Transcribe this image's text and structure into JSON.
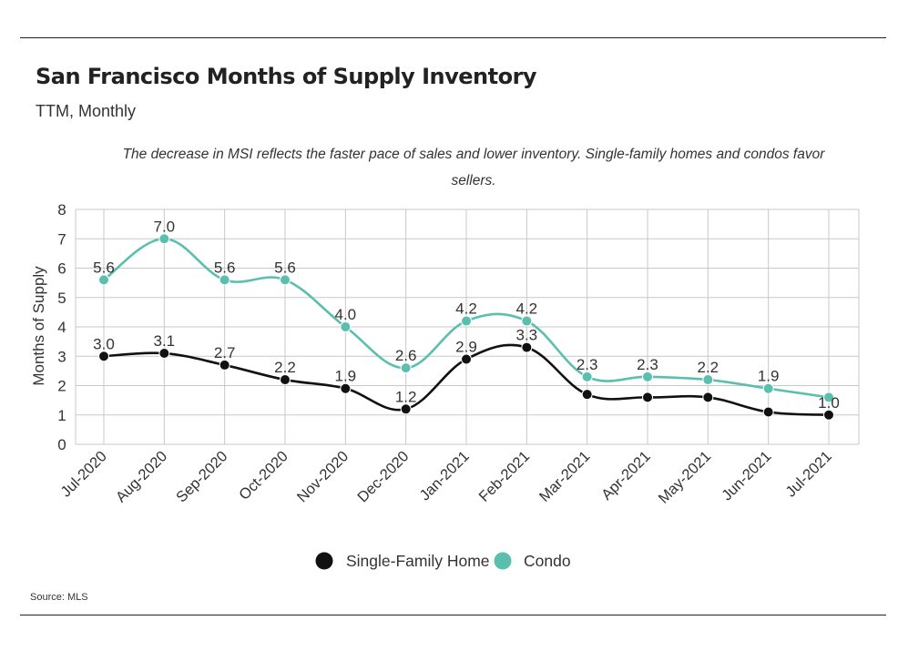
{
  "header": {
    "title": "San Francisco Months of Supply Inventory",
    "subtitle": "TTM, Monthly",
    "annotation": "The decrease in MSI reflects the faster pace of sales and lower inventory. Single-family homes and condos favor sellers."
  },
  "footer": {
    "source": "Source:  MLS"
  },
  "chart_data": {
    "type": "line",
    "title": "San Francisco Months of Supply Inventory",
    "subtitle": "TTM, Monthly",
    "ylabel": "Months of Supply",
    "xlabel": "",
    "ylim": [
      0,
      8
    ],
    "yticks": [
      0,
      1,
      2,
      3,
      4,
      5,
      6,
      7,
      8
    ],
    "grid": true,
    "legend_position": "bottom-center",
    "categories": [
      "Jul-2020",
      "Aug-2020",
      "Sep-2020",
      "Oct-2020",
      "Nov-2020",
      "Dec-2020",
      "Jan-2021",
      "Feb-2021",
      "Mar-2021",
      "Apr-2021",
      "May-2021",
      "Jun-2021",
      "Jul-2021"
    ],
    "series": [
      {
        "name": "Single-Family Home",
        "color": "#111111",
        "values": [
          3.0,
          3.1,
          2.7,
          2.2,
          1.9,
          1.2,
          2.9,
          3.3,
          1.7,
          1.6,
          1.6,
          1.1,
          1.0
        ],
        "labels": [
          "3.0",
          "3.1",
          "2.7",
          "2.2",
          "1.9",
          "1.2",
          "2.9",
          "3.3",
          "",
          "",
          "",
          "",
          "1.0"
        ]
      },
      {
        "name": "Condo",
        "color": "#5bbfb0",
        "values": [
          5.6,
          7.0,
          5.6,
          5.6,
          4.0,
          2.6,
          4.2,
          4.2,
          2.3,
          2.3,
          2.2,
          1.9,
          1.6
        ],
        "labels": [
          "5.6",
          "7.0",
          "5.6",
          "5.6",
          "4.0",
          "2.6",
          "4.2",
          "4.2",
          "2.3",
          "2.3",
          "2.2",
          "1.9",
          ""
        ]
      }
    ]
  }
}
